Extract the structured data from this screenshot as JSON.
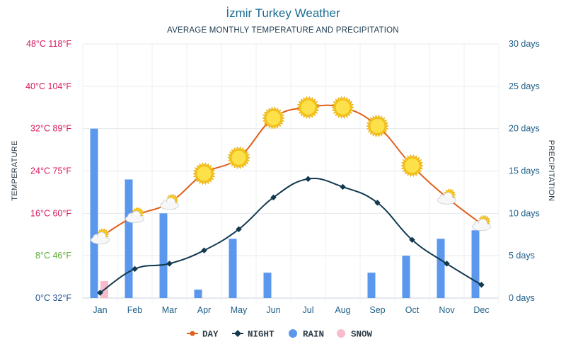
{
  "chart_data": {
    "type": "line",
    "title": "İzmir Turkey Weather",
    "subtitle": "AVERAGE MONTHLY TEMPERATURE AND PRECIPITATION",
    "ylabel_left": "TEMPERATURE",
    "ylabel_right": "PRECIPITATION",
    "categories": [
      "Jan",
      "Feb",
      "Mar",
      "Apr",
      "May",
      "Jun",
      "Jul",
      "Aug",
      "Sep",
      "Oct",
      "Nov",
      "Dec"
    ],
    "y_left_ticks": [
      {
        "label": "0°C 32°F",
        "value": 0,
        "color": "#1d4f8f"
      },
      {
        "label": "8°C 46°F",
        "value": 8,
        "color": "#5cad3a"
      },
      {
        "label": "16°C 60°F",
        "value": 16,
        "color": "#d81b60"
      },
      {
        "label": "24°C 75°F",
        "value": 24,
        "color": "#d81b60"
      },
      {
        "label": "32°C 89°F",
        "value": 32,
        "color": "#d81b60"
      },
      {
        "label": "40°C 104°F",
        "value": 40,
        "color": "#d81b60"
      },
      {
        "label": "48°C 118°F",
        "value": 48,
        "color": "#d81b60"
      }
    ],
    "y_right_ticks": [
      {
        "label": "0 days",
        "value": 0
      },
      {
        "label": "5 days",
        "value": 5
      },
      {
        "label": "10 days",
        "value": 10
      },
      {
        "label": "15 days",
        "value": 15
      },
      {
        "label": "20 days",
        "value": 20
      },
      {
        "label": "25 days",
        "value": 25
      },
      {
        "label": "30 days",
        "value": 30
      }
    ],
    "ylim_left": [
      0,
      48
    ],
    "ylim_right": [
      0,
      30
    ],
    "grid": true,
    "legend_position": "bottom",
    "series": [
      {
        "name": "DAY",
        "kind": "line",
        "axis": "left",
        "color": "#e0601c",
        "values": [
          11.5,
          15.5,
          18,
          23.5,
          26.5,
          34,
          36,
          36,
          32.5,
          25,
          19,
          14
        ]
      },
      {
        "name": "NIGHT",
        "kind": "line",
        "axis": "left",
        "color": "#12394f",
        "values": [
          1,
          5.5,
          6.5,
          9,
          13,
          19,
          22.5,
          21,
          18,
          11,
          6.5,
          2.5
        ]
      },
      {
        "name": "RAIN",
        "kind": "bar",
        "axis": "right",
        "color": "#5b97ed",
        "values": [
          20,
          14,
          10,
          1,
          7,
          3,
          0,
          0,
          3,
          5,
          7,
          8
        ]
      },
      {
        "name": "SNOW",
        "kind": "bar",
        "axis": "right",
        "color": "#f7bccb",
        "values": [
          2,
          0,
          0,
          0,
          0,
          0,
          0,
          0,
          0,
          0,
          0,
          0
        ]
      }
    ],
    "day_icons": [
      "partly-cloudy-icon",
      "partly-cloudy-icon",
      "partly-cloudy-icon",
      "sun-icon",
      "sun-icon",
      "sun-icon",
      "sun-icon",
      "sun-icon",
      "sun-icon",
      "sun-icon",
      "partly-cloudy-icon",
      "partly-cloudy-icon"
    ]
  }
}
